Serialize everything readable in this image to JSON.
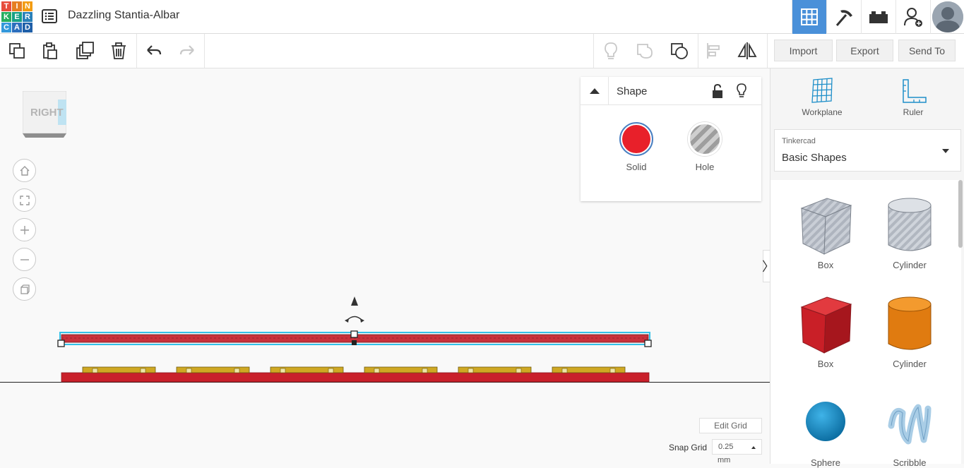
{
  "app": {
    "logo_letters": [
      "T",
      "I",
      "N",
      "K",
      "E",
      "R",
      "C",
      "A",
      "D"
    ],
    "logo_colors": [
      "#e74c3c",
      "#e67e22",
      "#f39c12",
      "#27ae60",
      "#16a085",
      "#2980b9",
      "#3498db",
      "#2c6fbd",
      "#1f5fa8"
    ],
    "doc_title": "Dazzling Stantia-Albar"
  },
  "toolbar": {
    "import_label": "Import",
    "export_label": "Export",
    "send_to_label": "Send To"
  },
  "viewcube": {
    "face_label": "RIGHT"
  },
  "shape_panel": {
    "title": "Shape",
    "solid_label": "Solid",
    "hole_label": "Hole",
    "solid_color": "#e8202a"
  },
  "right_panel": {
    "workplane_label": "Workplane",
    "ruler_label": "Ruler",
    "library_category": "Tinkercad",
    "library_name": "Basic Shapes",
    "shapes": [
      {
        "label": "Box",
        "kind": "box-hole"
      },
      {
        "label": "Cylinder",
        "kind": "cylinder-hole"
      },
      {
        "label": "Box",
        "kind": "box-red"
      },
      {
        "label": "Cylinder",
        "kind": "cylinder-orange"
      },
      {
        "label": "Sphere",
        "kind": "sphere"
      },
      {
        "label": "Scribble",
        "kind": "scribble"
      }
    ]
  },
  "grid": {
    "edit_grid_label": "Edit Grid",
    "snap_grid_label": "Snap Grid",
    "snap_value": "0.25",
    "snap_unit": "mm"
  }
}
